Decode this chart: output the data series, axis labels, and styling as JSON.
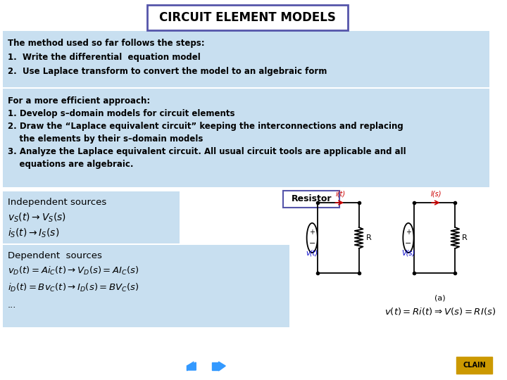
{
  "title": "CIRCUIT ELEMENT MODELS",
  "title_box_color": "#5555aa",
  "title_bg_color": "#ffffff",
  "title_text_color": "#000000",
  "slide_bg_color": "#ffffff",
  "panel_bg": "#c8dff0",
  "panel1_lines": [
    "The method used so far follows the steps:",
    "1.  Write the differential  equation model",
    "2.  Use Laplace transform to convert the model to an algebraic form"
  ],
  "panel2_lines": [
    "For a more efficient approach:",
    "1. Develop s–domain models for circuit elements",
    "2. Draw the “Laplace equivalent circuit” keeping the interconnections and replacing",
    "    the elements by their s–domain models",
    "3. Analyze the Laplace equivalent circuit. All usual circuit tools are applicable and all",
    "    equations are algebraic."
  ],
  "resistor_label": "Resistor",
  "resistor_box_color": "#5555aa",
  "ind_title": "Independent sources",
  "ind_eq1": "$v_S(t) \\rightarrow V_S(s)$",
  "ind_eq2": "$i_S(t) \\rightarrow I_S(s)$",
  "dep_title": "Dependent  sources",
  "dep_eq1": "$v_D(t) = Ai_C(t) \\rightarrow V_D(s) = AI_C(s)$",
  "dep_eq2": "$i_D(t) = Bv_C(t) \\rightarrow I_D(s) = BV_C(s)$",
  "dep_eq3": "...",
  "sub_a": "(a)",
  "bottom_eq": "$v(t) = Ri(t) \\Rightarrow V(s) = RI(s)$",
  "nav_color": "#3399ff",
  "clain_color": "#cc9900"
}
